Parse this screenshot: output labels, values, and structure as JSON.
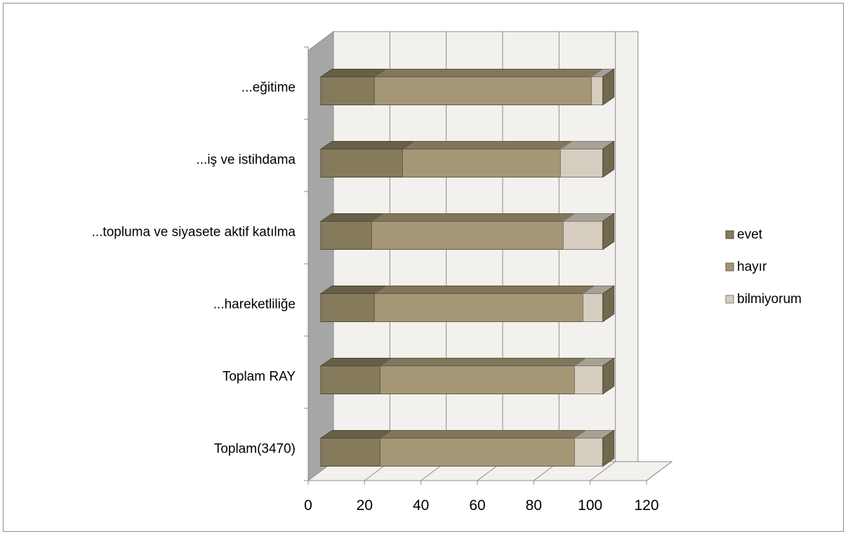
{
  "chart_data": {
    "type": "bar",
    "orientation": "horizontal",
    "stacked": true,
    "three_d": true,
    "categories": [
      "Toplam(3470)",
      "Toplam RAY",
      "...hareketliliğe",
      "...topluma ve siyasete aktif katılma",
      "...iş ve istihdama",
      "...eğitime"
    ],
    "series": [
      {
        "name": "evet",
        "values": [
          21,
          21,
          19,
          18,
          29,
          19
        ],
        "color": "#857a5c"
      },
      {
        "name": "hayır",
        "values": [
          69,
          69,
          74,
          68,
          56,
          77
        ],
        "color": "#a59776"
      },
      {
        "name": "bilmiyorum",
        "values": [
          10,
          10,
          7,
          14,
          15,
          4
        ],
        "color": "#d5cdbf"
      }
    ],
    "x_ticks": [
      "0",
      "20",
      "40",
      "60",
      "80",
      "100",
      "120"
    ],
    "xlim": [
      0,
      120
    ],
    "grid": true,
    "legend_position": "right",
    "title": "",
    "xlabel": "",
    "ylabel": ""
  }
}
